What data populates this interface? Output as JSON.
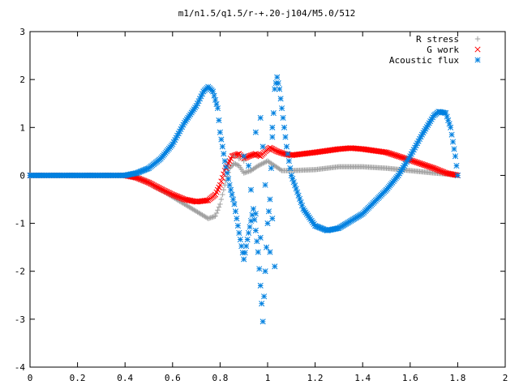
{
  "chart_data": {
    "type": "scatter",
    "title": "m1/n1.5/q1.5/r-+.20-j104/M5.0/512",
    "xlabel": "",
    "ylabel": "",
    "xlim": [
      0,
      2
    ],
    "ylim": [
      -4,
      3
    ],
    "x_ticks": [
      "0",
      "0.2",
      "0.4",
      "0.6",
      "0.8",
      "1",
      "1.2",
      "1.4",
      "1.6",
      "1.8",
      "2"
    ],
    "y_ticks": [
      "3",
      "2",
      "1",
      "0",
      "-1",
      "-2",
      "-3",
      "-4"
    ],
    "legend_position": "top-right",
    "grid": false,
    "series": [
      {
        "name": "R stress",
        "color": "#a0a0a0",
        "marker": "plus",
        "anchors": [
          [
            0,
            0
          ],
          [
            0.4,
            0
          ],
          [
            0.45,
            -0.05
          ],
          [
            0.5,
            -0.15
          ],
          [
            0.55,
            -0.3
          ],
          [
            0.6,
            -0.45
          ],
          [
            0.65,
            -0.6
          ],
          [
            0.7,
            -0.75
          ],
          [
            0.75,
            -0.9
          ],
          [
            0.78,
            -0.85
          ],
          [
            0.8,
            -0.6
          ],
          [
            0.82,
            -0.2
          ],
          [
            0.84,
            0.15
          ],
          [
            0.86,
            0.25
          ],
          [
            0.88,
            0.2
          ],
          [
            0.9,
            0.05
          ],
          [
            0.93,
            0.1
          ],
          [
            0.96,
            0.2
          ],
          [
            1.0,
            0.3
          ],
          [
            1.03,
            0.2
          ],
          [
            1.06,
            0.1
          ],
          [
            1.1,
            0.1
          ],
          [
            1.2,
            0.12
          ],
          [
            1.3,
            0.18
          ],
          [
            1.4,
            0.18
          ],
          [
            1.5,
            0.15
          ],
          [
            1.6,
            0.1
          ],
          [
            1.7,
            0.05
          ],
          [
            1.75,
            0.03
          ],
          [
            1.8,
            0
          ]
        ]
      },
      {
        "name": "G work",
        "color": "#ff0000",
        "marker": "cross",
        "anchors": [
          [
            0,
            0
          ],
          [
            0.4,
            0
          ],
          [
            0.45,
            -0.05
          ],
          [
            0.5,
            -0.15
          ],
          [
            0.55,
            -0.28
          ],
          [
            0.6,
            -0.4
          ],
          [
            0.65,
            -0.5
          ],
          [
            0.7,
            -0.55
          ],
          [
            0.75,
            -0.52
          ],
          [
            0.78,
            -0.4
          ],
          [
            0.8,
            -0.2
          ],
          [
            0.82,
            0.1
          ],
          [
            0.85,
            0.4
          ],
          [
            0.88,
            0.45
          ],
          [
            0.9,
            0.35
          ],
          [
            0.92,
            0.4
          ],
          [
            0.95,
            0.45
          ],
          [
            0.97,
            0.4
          ],
          [
            0.99,
            0.5
          ],
          [
            1.01,
            0.58
          ],
          [
            1.04,
            0.5
          ],
          [
            1.07,
            0.45
          ],
          [
            1.1,
            0.42
          ],
          [
            1.2,
            0.48
          ],
          [
            1.3,
            0.55
          ],
          [
            1.35,
            0.57
          ],
          [
            1.4,
            0.55
          ],
          [
            1.5,
            0.48
          ],
          [
            1.6,
            0.32
          ],
          [
            1.7,
            0.15
          ],
          [
            1.75,
            0.05
          ],
          [
            1.8,
            0
          ]
        ]
      },
      {
        "name": "Acoustic flux",
        "color": "#0080e0",
        "marker": "star",
        "anchors": [
          [
            0,
            0
          ],
          [
            0.4,
            0
          ],
          [
            0.45,
            0.05
          ],
          [
            0.5,
            0.15
          ],
          [
            0.55,
            0.35
          ],
          [
            0.6,
            0.65
          ],
          [
            0.65,
            1.1
          ],
          [
            0.7,
            1.45
          ],
          [
            0.73,
            1.75
          ],
          [
            0.75,
            1.85
          ],
          [
            0.77,
            1.75
          ],
          [
            0.79,
            1.4
          ],
          [
            0.8,
            0.9
          ],
          [
            0.82,
            0.3
          ],
          [
            0.84,
            -0.2
          ],
          [
            0.86,
            -0.6
          ],
          [
            0.88,
            -1.2
          ],
          [
            0.9,
            -1.75
          ],
          [
            0.92,
            -1.2
          ],
          [
            0.94,
            -0.7
          ],
          [
            0.96,
            -1.6
          ],
          [
            0.97,
            -2.3
          ],
          [
            0.98,
            -3.05
          ],
          [
            0.99,
            -2.0
          ],
          [
            1.0,
            -1.0
          ],
          [
            1.01,
            -0.5
          ],
          [
            1.02,
            0.8
          ],
          [
            1.03,
            1.8
          ],
          [
            1.04,
            2.05
          ],
          [
            1.05,
            1.8
          ],
          [
            1.06,
            1.4
          ],
          [
            1.08,
            0.6
          ],
          [
            1.1,
            0.0
          ],
          [
            1.15,
            -0.7
          ],
          [
            1.2,
            -1.05
          ],
          [
            1.25,
            -1.15
          ],
          [
            1.3,
            -1.1
          ],
          [
            1.4,
            -0.8
          ],
          [
            1.5,
            -0.3
          ],
          [
            1.55,
            0.0
          ],
          [
            1.6,
            0.4
          ],
          [
            1.65,
            0.85
          ],
          [
            1.7,
            1.25
          ],
          [
            1.72,
            1.33
          ],
          [
            1.75,
            1.3
          ],
          [
            1.77,
            1.0
          ],
          [
            1.79,
            0.4
          ],
          [
            1.8,
            0
          ]
        ]
      }
    ],
    "scatter_ghosts": [
      {
        "series": 2,
        "points": [
          [
            0.9,
            0.4
          ],
          [
            0.92,
            0.2
          ],
          [
            0.95,
            0.9
          ],
          [
            0.97,
            1.2
          ],
          [
            0.98,
            0.6
          ],
          [
            0.93,
            -0.3
          ],
          [
            0.95,
            -0.8
          ],
          [
            0.97,
            -1.3
          ],
          [
            0.99,
            -0.2
          ],
          [
            1.01,
            -1.6
          ],
          [
            1.02,
            -0.9
          ],
          [
            1.03,
            -1.9
          ],
          [
            1.02,
            1.0
          ]
        ]
      },
      {
        "series": 0,
        "points": [
          [
            0.86,
            0.4
          ],
          [
            0.88,
            0.35
          ],
          [
            0.9,
            0.3
          ]
        ]
      }
    ]
  }
}
